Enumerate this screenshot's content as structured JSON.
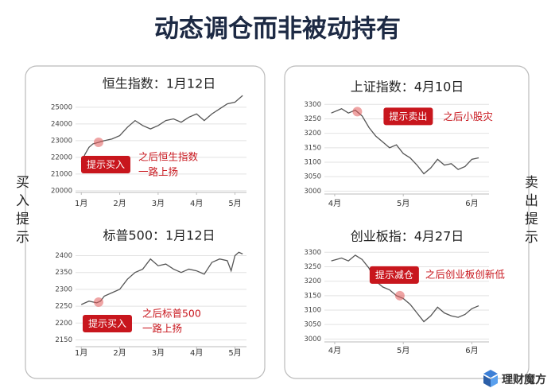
{
  "title": "动态调仓而非被动持有",
  "left_label": "买入提示",
  "right_label": "卖出提示",
  "brand": "理财魔方",
  "chart_data": [
    {
      "type": "line",
      "title": "恒生指数：1月12日",
      "x": [
        1.0,
        1.1,
        1.2,
        1.3,
        1.45,
        1.6,
        1.8,
        2.0,
        2.2,
        2.4,
        2.6,
        2.8,
        3.0,
        3.2,
        3.4,
        3.6,
        3.8,
        4.0,
        4.2,
        4.4,
        4.6,
        4.8,
        5.0,
        5.2
      ],
      "series": [
        {
          "name": "恒生指数",
          "color": "#555555",
          "values": [
            21700,
            22200,
            22600,
            22800,
            22900,
            23000,
            23100,
            23300,
            23800,
            24200,
            23900,
            23700,
            23900,
            24200,
            24300,
            24100,
            24400,
            24600,
            24200,
            24600,
            24900,
            25200,
            25300,
            25700
          ]
        }
      ],
      "xlim": [
        0.85,
        5.3
      ],
      "xticks": [
        {
          "value": 1,
          "label": "1月"
        },
        {
          "value": 2,
          "label": "2月"
        },
        {
          "value": 3,
          "label": "3月"
        },
        {
          "value": 4,
          "label": "4月"
        },
        {
          "value": 5,
          "label": "5月"
        }
      ],
      "ylim": [
        19900,
        25800
      ],
      "yticks": [
        20000,
        21000,
        22000,
        23000,
        24000,
        25000
      ],
      "grid": true,
      "marker": {
        "x": 1.45,
        "y": 22900
      },
      "callout": "提示买入",
      "note": [
        "之后恒生指数",
        "一路上扬"
      ]
    },
    {
      "type": "line",
      "title": "标普500：1月12日",
      "x": [
        1.0,
        1.2,
        1.4,
        1.5,
        1.6,
        1.8,
        2.0,
        2.2,
        2.4,
        2.6,
        2.8,
        3.0,
        3.2,
        3.4,
        3.6,
        3.8,
        4.0,
        4.2,
        4.4,
        4.6,
        4.8,
        4.9,
        5.0,
        5.1,
        5.2
      ],
      "series": [
        {
          "name": "标普500",
          "color": "#555555",
          "values": [
            2255,
            2265,
            2260,
            2265,
            2280,
            2290,
            2300,
            2330,
            2350,
            2360,
            2390,
            2370,
            2375,
            2360,
            2350,
            2360,
            2355,
            2345,
            2380,
            2390,
            2385,
            2355,
            2400,
            2410,
            2405
          ]
        }
      ],
      "xlim": [
        0.85,
        5.3
      ],
      "xticks": [
        {
          "value": 1,
          "label": "1月"
        },
        {
          "value": 2,
          "label": "2月"
        },
        {
          "value": 3,
          "label": "3月"
        },
        {
          "value": 4,
          "label": "4月"
        },
        {
          "value": 5,
          "label": "5月"
        }
      ],
      "ylim": [
        2130,
        2420
      ],
      "yticks": [
        2150,
        2200,
        2250,
        2300,
        2350,
        2400
      ],
      "grid": true,
      "marker": {
        "x": 1.45,
        "y": 2262
      },
      "callout": "提示买入",
      "note": [
        "之后标普500",
        "一路上扬"
      ]
    },
    {
      "type": "line",
      "title": "上证指数：4月10日",
      "x": [
        3.95,
        4.1,
        4.2,
        4.3,
        4.4,
        4.5,
        4.6,
        4.7,
        4.8,
        4.9,
        5.0,
        5.1,
        5.2,
        5.3,
        5.4,
        5.5,
        5.6,
        5.7,
        5.8,
        5.9,
        6.0,
        6.1
      ],
      "series": [
        {
          "name": "上证指数",
          "color": "#555555",
          "values": [
            3270,
            3285,
            3270,
            3280,
            3260,
            3220,
            3190,
            3170,
            3150,
            3160,
            3130,
            3115,
            3090,
            3060,
            3080,
            3110,
            3090,
            3095,
            3075,
            3085,
            3110,
            3115
          ]
        }
      ],
      "xlim": [
        3.85,
        6.25
      ],
      "xticks": [
        {
          "value": 4,
          "label": "4月"
        },
        {
          "value": 5,
          "label": "5月"
        },
        {
          "value": 6,
          "label": "6月"
        }
      ],
      "ylim": [
        2990,
        3320
      ],
      "yticks": [
        3000,
        3050,
        3100,
        3150,
        3200,
        3250,
        3300
      ],
      "grid": true,
      "marker": {
        "x": 4.33,
        "y": 3275
      },
      "callout": "提示卖出",
      "note": [
        "之后小股灾"
      ]
    },
    {
      "type": "line",
      "title": "创业板指：4月27日",
      "x": [
        3.95,
        4.1,
        4.2,
        4.3,
        4.4,
        4.5,
        4.6,
        4.7,
        4.8,
        4.9,
        5.0,
        5.1,
        5.2,
        5.3,
        5.4,
        5.5,
        5.6,
        5.7,
        5.8,
        5.9,
        6.0,
        6.1
      ],
      "series": [
        {
          "name": "创业板指",
          "color": "#555555",
          "values": [
            3270,
            3280,
            3270,
            3290,
            3275,
            3245,
            3200,
            3180,
            3170,
            3150,
            3140,
            3120,
            3090,
            3060,
            3080,
            3110,
            3090,
            3080,
            3075,
            3085,
            3105,
            3115
          ]
        }
      ],
      "xlim": [
        3.85,
        6.25
      ],
      "xticks": [
        {
          "value": 4,
          "label": "4月"
        },
        {
          "value": 5,
          "label": "5月"
        },
        {
          "value": 6,
          "label": "6月"
        }
      ],
      "ylim": [
        2990,
        3320
      ],
      "yticks": [
        3000,
        3050,
        3100,
        3150,
        3200,
        3250,
        3300
      ],
      "grid": true,
      "marker": {
        "x": 4.95,
        "y": 3150
      },
      "callout": "提示减仓",
      "note": [
        "之后创业板创新低"
      ]
    }
  ]
}
